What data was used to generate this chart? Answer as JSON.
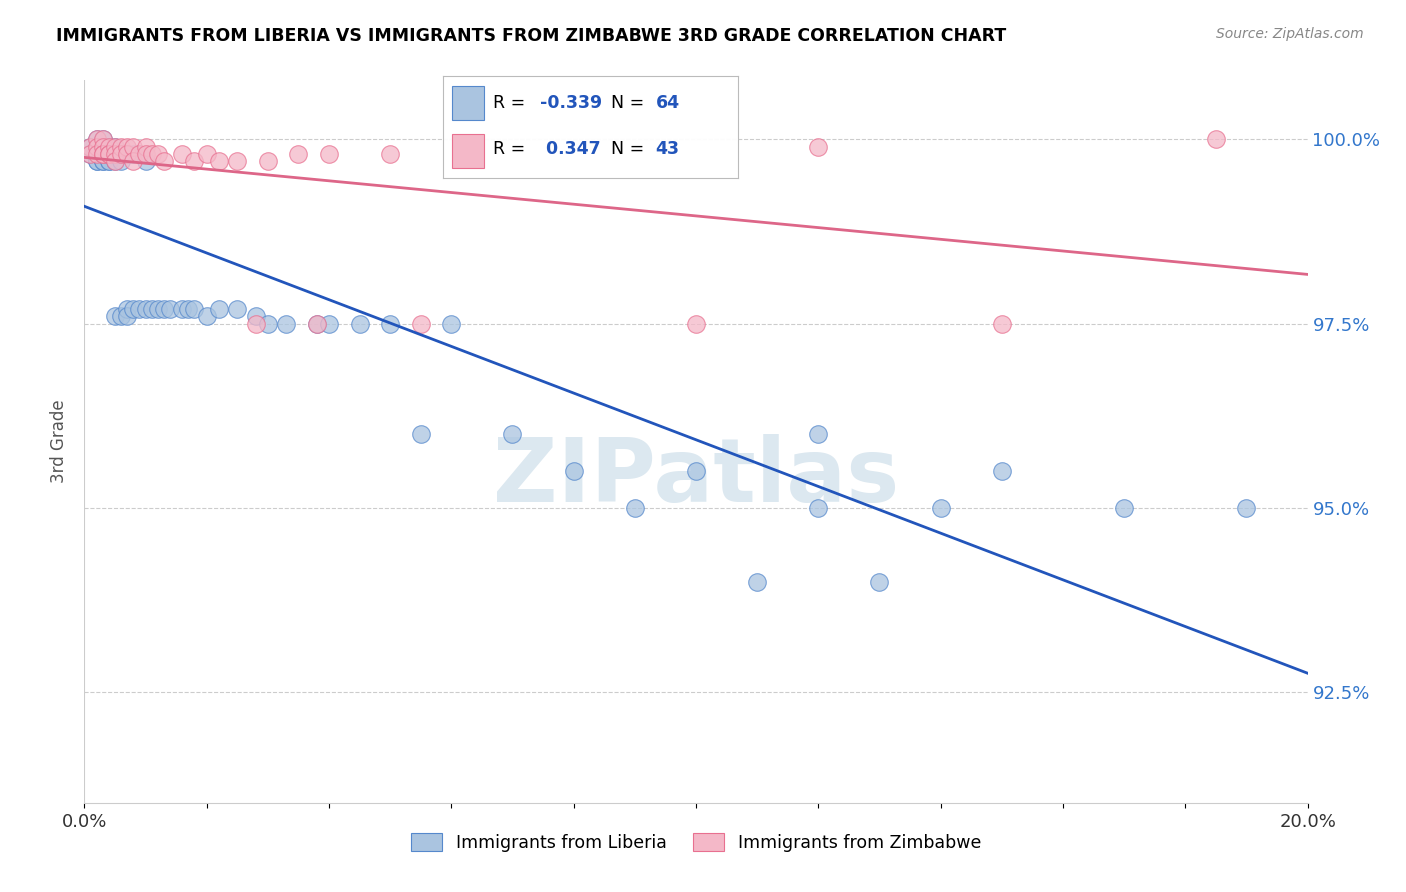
{
  "title": "IMMIGRANTS FROM LIBERIA VS IMMIGRANTS FROM ZIMBABWE 3RD GRADE CORRELATION CHART",
  "source": "Source: ZipAtlas.com",
  "ylabel": "3rd Grade",
  "y_tick_values": [
    0.925,
    0.95,
    0.975,
    1.0
  ],
  "xlim": [
    0.0,
    0.2
  ],
  "ylim": [
    0.91,
    1.008
  ],
  "liberia_color": "#aac4e0",
  "zimbabwe_color": "#f4b8c8",
  "liberia_edge_color": "#5588cc",
  "zimbabwe_edge_color": "#e87090",
  "liberia_line_color": "#2255bb",
  "zimbabwe_line_color": "#dd6688",
  "watermark_color": "#dce8f0",
  "grid_color": "#cccccc",
  "R_lib": -0.339,
  "N_lib": 64,
  "R_zim": 0.347,
  "N_zim": 43,
  "liberia_x": [
    0.001,
    0.001,
    0.002,
    0.002,
    0.002,
    0.002,
    0.002,
    0.003,
    0.003,
    0.003,
    0.003,
    0.003,
    0.003,
    0.004,
    0.004,
    0.004,
    0.004,
    0.005,
    0.005,
    0.005,
    0.005,
    0.006,
    0.006,
    0.006,
    0.007,
    0.007,
    0.007,
    0.008,
    0.008,
    0.009,
    0.009,
    0.01,
    0.01,
    0.011,
    0.012,
    0.013,
    0.014,
    0.016,
    0.017,
    0.018,
    0.02,
    0.022,
    0.025,
    0.028,
    0.03,
    0.033,
    0.038,
    0.04,
    0.045,
    0.05,
    0.055,
    0.06,
    0.07,
    0.08,
    0.09,
    0.1,
    0.11,
    0.12,
    0.13,
    0.14,
    0.15,
    0.17,
    0.12,
    0.19
  ],
  "liberia_y": [
    0.999,
    0.998,
    1.0,
    0.999,
    0.998,
    0.997,
    0.997,
    1.0,
    0.999,
    0.998,
    0.998,
    0.997,
    0.997,
    0.999,
    0.998,
    0.997,
    0.997,
    0.999,
    0.998,
    0.997,
    0.976,
    0.998,
    0.997,
    0.976,
    0.998,
    0.977,
    0.976,
    0.998,
    0.977,
    0.998,
    0.977,
    0.997,
    0.977,
    0.977,
    0.977,
    0.977,
    0.977,
    0.977,
    0.977,
    0.977,
    0.976,
    0.977,
    0.977,
    0.976,
    0.975,
    0.975,
    0.975,
    0.975,
    0.975,
    0.975,
    0.96,
    0.975,
    0.96,
    0.955,
    0.95,
    0.955,
    0.94,
    0.96,
    0.94,
    0.95,
    0.955,
    0.95,
    0.95,
    0.95
  ],
  "zimbabwe_x": [
    0.001,
    0.001,
    0.002,
    0.002,
    0.002,
    0.003,
    0.003,
    0.003,
    0.003,
    0.004,
    0.004,
    0.004,
    0.005,
    0.005,
    0.005,
    0.006,
    0.006,
    0.007,
    0.007,
    0.008,
    0.008,
    0.009,
    0.01,
    0.01,
    0.011,
    0.012,
    0.013,
    0.016,
    0.018,
    0.02,
    0.025,
    0.03,
    0.035,
    0.04,
    0.05,
    0.055,
    0.022,
    0.028,
    0.038,
    0.1,
    0.12,
    0.15,
    0.185
  ],
  "zimbabwe_y": [
    0.999,
    0.998,
    1.0,
    0.999,
    0.998,
    1.0,
    0.999,
    0.998,
    0.998,
    0.999,
    0.998,
    0.998,
    0.999,
    0.998,
    0.997,
    0.999,
    0.998,
    0.999,
    0.998,
    0.999,
    0.997,
    0.998,
    0.999,
    0.998,
    0.998,
    0.998,
    0.997,
    0.998,
    0.997,
    0.998,
    0.997,
    0.997,
    0.998,
    0.998,
    0.998,
    0.975,
    0.997,
    0.975,
    0.975,
    0.975,
    0.999,
    0.975,
    1.0
  ]
}
